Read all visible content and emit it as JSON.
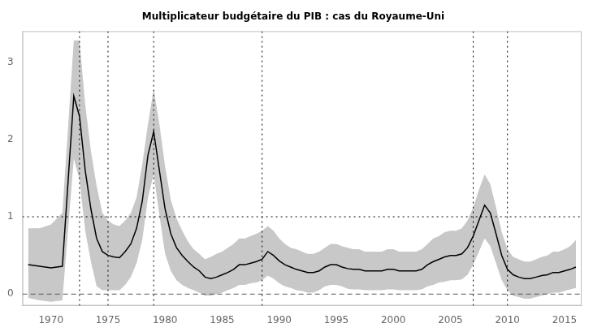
{
  "chart_data": {
    "type": "line",
    "title": "Multiplicateur budgétaire du PIB : cas du Royaume-Uni",
    "xlim": [
      1967.5,
      2016.5
    ],
    "ylim": [
      -0.15,
      3.4
    ],
    "xticks": [
      1970,
      1975,
      1980,
      1985,
      1990,
      1995,
      2000,
      2005,
      2010,
      2015
    ],
    "yticks": [
      0,
      1,
      2,
      3
    ],
    "grid": false,
    "x": [
      1968,
      1969,
      1970,
      1971,
      1972,
      1972.5,
      1973,
      1973.5,
      1974,
      1974.5,
      1975,
      1975.5,
      1976,
      1976.5,
      1977,
      1977.5,
      1978,
      1978.5,
      1979,
      1979.5,
      1980,
      1980.5,
      1981,
      1981.5,
      1982,
      1982.5,
      1983,
      1983.5,
      1984,
      1984.5,
      1985,
      1985.5,
      1986,
      1986.5,
      1987,
      1987.5,
      1988,
      1988.5,
      1989,
      1989.5,
      1990,
      1990.5,
      1991,
      1991.5,
      1992,
      1992.5,
      1993,
      1993.5,
      1994,
      1994.5,
      1995,
      1995.5,
      1996,
      1996.5,
      1997,
      1997.5,
      1998,
      1998.5,
      1999,
      1999.5,
      2000,
      2000.5,
      2001,
      2001.5,
      2002,
      2002.5,
      2003,
      2003.5,
      2004,
      2004.5,
      2005,
      2005.5,
      2006,
      2006.5,
      2007,
      2007.5,
      2008,
      2008.5,
      2009,
      2009.5,
      2010,
      2010.5,
      2011,
      2011.5,
      2012,
      2012.5,
      2013,
      2013.5,
      2014,
      2014.5,
      2015,
      2015.5,
      2016
    ],
    "series": [
      {
        "color": "#000000",
        "line_style": "solid",
        "values": [
          0.38,
          0.36,
          0.34,
          0.36,
          2.56,
          2.3,
          1.6,
          1.1,
          0.72,
          0.55,
          0.5,
          0.48,
          0.47,
          0.55,
          0.65,
          0.85,
          1.2,
          1.8,
          2.1,
          1.6,
          1.1,
          0.78,
          0.6,
          0.5,
          0.42,
          0.35,
          0.3,
          0.22,
          0.2,
          0.22,
          0.25,
          0.28,
          0.32,
          0.38,
          0.38,
          0.4,
          0.42,
          0.45,
          0.55,
          0.5,
          0.43,
          0.38,
          0.35,
          0.32,
          0.3,
          0.28,
          0.28,
          0.3,
          0.35,
          0.38,
          0.38,
          0.35,
          0.33,
          0.32,
          0.32,
          0.3,
          0.3,
          0.3,
          0.3,
          0.32,
          0.32,
          0.3,
          0.3,
          0.3,
          0.3,
          0.32,
          0.38,
          0.42,
          0.45,
          0.48,
          0.5,
          0.5,
          0.52,
          0.6,
          0.75,
          0.95,
          1.15,
          1.05,
          0.78,
          0.5,
          0.32,
          0.25,
          0.22,
          0.2,
          0.2,
          0.22,
          0.24,
          0.25,
          0.28,
          0.28,
          0.3,
          0.32,
          0.35
        ]
      }
    ],
    "band": {
      "color": "#c8c8c8",
      "upper": [
        0.85,
        0.85,
        0.9,
        1.05,
        3.28,
        3.28,
        2.45,
        1.85,
        1.4,
        1.05,
        0.95,
        0.9,
        0.88,
        0.95,
        1.05,
        1.25,
        1.68,
        2.2,
        2.65,
        2.2,
        1.65,
        1.22,
        0.98,
        0.82,
        0.68,
        0.58,
        0.52,
        0.45,
        0.48,
        0.52,
        0.55,
        0.6,
        0.65,
        0.72,
        0.72,
        0.75,
        0.78,
        0.82,
        0.88,
        0.82,
        0.72,
        0.65,
        0.6,
        0.58,
        0.55,
        0.52,
        0.52,
        0.55,
        0.6,
        0.65,
        0.65,
        0.62,
        0.6,
        0.58,
        0.58,
        0.55,
        0.55,
        0.55,
        0.55,
        0.58,
        0.58,
        0.55,
        0.55,
        0.55,
        0.55,
        0.58,
        0.65,
        0.72,
        0.75,
        0.8,
        0.82,
        0.82,
        0.85,
        0.95,
        1.12,
        1.35,
        1.55,
        1.42,
        1.12,
        0.8,
        0.58,
        0.48,
        0.45,
        0.42,
        0.42,
        0.45,
        0.48,
        0.5,
        0.55,
        0.55,
        0.58,
        0.62,
        0.7
      ],
      "lower": [
        -0.05,
        -0.08,
        -0.1,
        -0.08,
        1.75,
        1.48,
        0.82,
        0.42,
        0.1,
        0.05,
        0.05,
        0.05,
        0.05,
        0.12,
        0.22,
        0.4,
        0.7,
        1.25,
        1.55,
        1.02,
        0.52,
        0.3,
        0.18,
        0.12,
        0.08,
        0.05,
        0.02,
        -0.02,
        -0.02,
        0.0,
        0.02,
        0.05,
        0.08,
        0.12,
        0.12,
        0.14,
        0.15,
        0.18,
        0.24,
        0.2,
        0.14,
        0.1,
        0.08,
        0.05,
        0.04,
        0.02,
        0.02,
        0.05,
        0.1,
        0.12,
        0.12,
        0.1,
        0.07,
        0.06,
        0.06,
        0.05,
        0.05,
        0.05,
        0.05,
        0.06,
        0.06,
        0.05,
        0.05,
        0.05,
        0.05,
        0.06,
        0.1,
        0.12,
        0.15,
        0.16,
        0.18,
        0.18,
        0.19,
        0.25,
        0.38,
        0.55,
        0.72,
        0.62,
        0.4,
        0.18,
        0.05,
        -0.02,
        -0.04,
        -0.06,
        -0.06,
        -0.04,
        -0.02,
        0.0,
        0.02,
        0.02,
        0.04,
        0.06,
        0.08
      ]
    },
    "hlines": [
      {
        "value": 1.0,
        "line_style": "dotted",
        "color": "#000000"
      },
      {
        "value": 0.0,
        "line_style": "dashed",
        "color": "#555555"
      }
    ],
    "vlines": [
      {
        "value": 1972.5,
        "line_style": "dotted",
        "color": "#000000"
      },
      {
        "value": 1975.0,
        "line_style": "dotted",
        "color": "#000000"
      },
      {
        "value": 1979.0,
        "line_style": "dotted",
        "color": "#000000"
      },
      {
        "value": 1988.5,
        "line_style": "dotted",
        "color": "#000000"
      },
      {
        "value": 2007.0,
        "line_style": "dotted",
        "color": "#000000"
      },
      {
        "value": 2010.0,
        "line_style": "dotted",
        "color": "#000000"
      }
    ]
  }
}
